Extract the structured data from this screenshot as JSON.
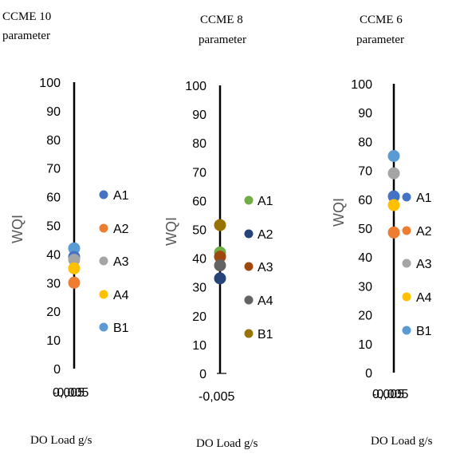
{
  "chart_data": [
    {
      "type": "scatter",
      "title_line1": "CCME 10",
      "title_line2": "parameter",
      "ylabel": "WQI",
      "xlabel": "DO Load g/s",
      "ylim": [
        0,
        100
      ],
      "yticks": [
        0,
        10,
        20,
        30,
        40,
        50,
        60,
        70,
        80,
        90,
        100
      ],
      "xtick_labels": [
        "-0,005",
        "0,005"
      ],
      "series": [
        {
          "name": "A1",
          "x": 0,
          "y": 39,
          "color": "#4472C4"
        },
        {
          "name": "A2",
          "x": 0,
          "y": 30,
          "color": "#ED7D31"
        },
        {
          "name": "A3",
          "x": 0,
          "y": 38,
          "color": "#A5A5A5"
        },
        {
          "name": "A4",
          "x": 0,
          "y": 35,
          "color": "#FFC000"
        },
        {
          "name": "B1",
          "x": 0,
          "y": 42,
          "color": "#5B9BD5"
        }
      ],
      "legend": "right"
    },
    {
      "type": "scatter",
      "title_line1": "CCME 8",
      "title_line2": "parameter",
      "ylabel": "WQI",
      "xlabel": "DO Load g/s",
      "ylim": [
        0,
        100
      ],
      "yticks": [
        0,
        10,
        20,
        30,
        40,
        50,
        60,
        70,
        80,
        90,
        100
      ],
      "xtick_labels": [
        "-0,005"
      ],
      "series": [
        {
          "name": "A1",
          "x": 0,
          "y": 42,
          "color": "#70AD47"
        },
        {
          "name": "A2",
          "x": 0,
          "y": 33,
          "color": "#264478"
        },
        {
          "name": "A3",
          "x": 0,
          "y": 40.5,
          "color": "#9E480E"
        },
        {
          "name": "A4",
          "x": 0,
          "y": 37.5,
          "color": "#636363"
        },
        {
          "name": "B1",
          "x": 0,
          "y": 51.5,
          "color": "#997300"
        }
      ],
      "legend": "right"
    },
    {
      "type": "scatter",
      "title_line1": "CCME 6",
      "title_line2": "parameter",
      "ylabel": "WQI",
      "xlabel": "DO Load g/s",
      "ylim": [
        0,
        100
      ],
      "yticks": [
        0,
        10,
        20,
        30,
        40,
        50,
        60,
        70,
        80,
        90,
        100
      ],
      "xtick_labels": [
        "-0,005",
        "0,005"
      ],
      "series": [
        {
          "name": "A1",
          "x": 0,
          "y": 61,
          "color": "#4472C4"
        },
        {
          "name": "A2",
          "x": 0,
          "y": 48.5,
          "color": "#ED7D31"
        },
        {
          "name": "A3",
          "x": 0,
          "y": 69,
          "color": "#A5A5A5"
        },
        {
          "name": "A4",
          "x": 0,
          "y": 58,
          "color": "#FFC000"
        },
        {
          "name": "B1",
          "x": 0,
          "y": 75,
          "color": "#5B9BD5"
        }
      ],
      "legend": "right"
    }
  ]
}
